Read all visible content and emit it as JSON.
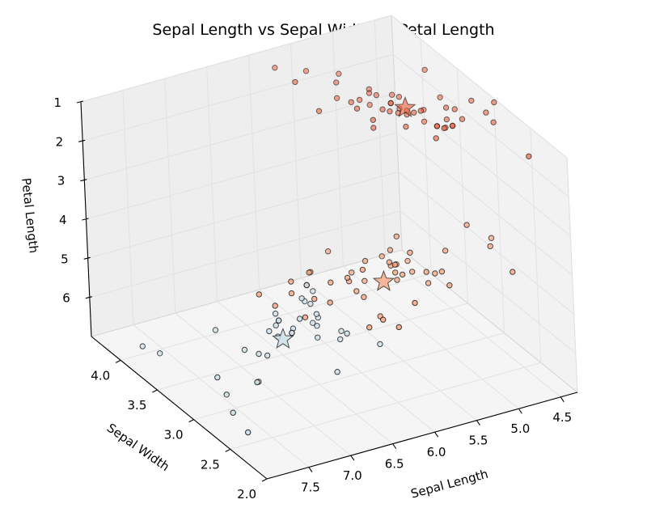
{
  "chart_data": {
    "type": "scatter",
    "title": "Sepal Length  vs  Sepal   Width   vs  Petal   Length",
    "xlabel": "Sepal Length",
    "ylabel": "Sepal Width",
    "zlabel": "Petal Length",
    "xlim": [
      4.3,
      8.0
    ],
    "ylim": [
      2.0,
      4.4
    ],
    "zlim": [
      1.0,
      7.0
    ],
    "z_inverted": true,
    "x_ticks": [
      "4.5",
      "5.0",
      "5.5",
      "6.0",
      "6.5",
      "7.0",
      "7.5"
    ],
    "y_ticks": [
      "2.0",
      "2.5",
      "3.0",
      "3.5",
      "4.0"
    ],
    "z_ticks": [
      "1",
      "2",
      "3",
      "4",
      "5",
      "6"
    ],
    "grid": true,
    "colors": {
      "cluster_setosa": "#e9694a",
      "cluster_versicolor": "#f4a582",
      "cluster_virginica": "#cddfe8",
      "point_edge": "#000000",
      "pane": "#f2f2f2"
    },
    "series": [
      {
        "color_key": "cluster_setosa",
        "marker": "circle",
        "points": [
          [
            5.1,
            3.5,
            1.4
          ],
          [
            4.9,
            3.0,
            1.4
          ],
          [
            4.7,
            3.2,
            1.3
          ],
          [
            4.6,
            3.1,
            1.5
          ],
          [
            5.0,
            3.6,
            1.4
          ],
          [
            5.4,
            3.9,
            1.7
          ],
          [
            4.6,
            3.4,
            1.4
          ],
          [
            5.0,
            3.4,
            1.5
          ],
          [
            4.4,
            2.9,
            1.4
          ],
          [
            4.9,
            3.1,
            1.5
          ],
          [
            5.4,
            3.7,
            1.5
          ],
          [
            4.8,
            3.4,
            1.6
          ],
          [
            4.8,
            3.0,
            1.4
          ],
          [
            4.3,
            3.0,
            1.1
          ],
          [
            5.8,
            4.0,
            1.2
          ],
          [
            5.7,
            4.4,
            1.5
          ],
          [
            5.4,
            3.9,
            1.3
          ],
          [
            5.1,
            3.5,
            1.4
          ],
          [
            5.7,
            3.8,
            1.7
          ],
          [
            5.1,
            3.8,
            1.5
          ],
          [
            5.4,
            3.4,
            1.7
          ],
          [
            5.1,
            3.7,
            1.5
          ],
          [
            4.6,
            3.6,
            1.0
          ],
          [
            5.1,
            3.3,
            1.7
          ],
          [
            4.8,
            3.4,
            1.9
          ],
          [
            5.0,
            3.0,
            1.6
          ],
          [
            5.0,
            3.4,
            1.6
          ],
          [
            5.2,
            3.5,
            1.5
          ],
          [
            5.2,
            3.4,
            1.4
          ],
          [
            4.7,
            3.2,
            1.6
          ],
          [
            4.8,
            3.1,
            1.6
          ],
          [
            5.4,
            3.4,
            1.5
          ],
          [
            5.2,
            4.1,
            1.5
          ],
          [
            5.5,
            4.2,
            1.4
          ],
          [
            4.9,
            3.1,
            1.5
          ],
          [
            5.0,
            3.2,
            1.2
          ],
          [
            5.5,
            3.5,
            1.3
          ],
          [
            4.4,
            3.0,
            1.3
          ],
          [
            5.1,
            3.4,
            1.5
          ],
          [
            5.0,
            3.5,
            1.3
          ],
          [
            4.5,
            2.3,
            1.3
          ],
          [
            4.4,
            3.2,
            1.3
          ],
          [
            5.0,
            3.5,
            1.6
          ],
          [
            5.1,
            3.8,
            1.9
          ],
          [
            4.8,
            3.0,
            1.4
          ],
          [
            5.1,
            3.8,
            1.6
          ],
          [
            4.6,
            3.2,
            1.4
          ],
          [
            5.3,
            3.7,
            1.5
          ],
          [
            5.0,
            3.3,
            1.4
          ]
        ],
        "centroid": [
          5.0,
          3.42,
          1.46
        ]
      },
      {
        "color_key": "cluster_versicolor",
        "marker": "circle",
        "points": [
          [
            7.0,
            3.2,
            4.7
          ],
          [
            6.4,
            3.2,
            4.5
          ],
          [
            6.9,
            3.1,
            4.9
          ],
          [
            5.5,
            2.3,
            4.0
          ],
          [
            6.5,
            2.8,
            4.6
          ],
          [
            5.7,
            2.8,
            4.5
          ],
          [
            6.3,
            3.3,
            4.7
          ],
          [
            4.9,
            2.4,
            3.3
          ],
          [
            6.6,
            2.9,
            4.6
          ],
          [
            5.2,
            2.7,
            3.9
          ],
          [
            5.0,
            2.0,
            3.5
          ],
          [
            5.9,
            3.0,
            4.2
          ],
          [
            6.0,
            2.2,
            4.0
          ],
          [
            6.1,
            2.9,
            4.7
          ],
          [
            5.6,
            2.9,
            3.6
          ],
          [
            6.7,
            3.1,
            4.4
          ],
          [
            5.6,
            3.0,
            4.5
          ],
          [
            5.8,
            2.7,
            4.1
          ],
          [
            6.2,
            2.2,
            4.5
          ],
          [
            5.6,
            2.5,
            3.9
          ],
          [
            5.9,
            3.2,
            4.8
          ],
          [
            6.1,
            2.8,
            4.0
          ],
          [
            6.3,
            2.5,
            4.9
          ],
          [
            6.1,
            2.8,
            4.7
          ],
          [
            6.4,
            2.9,
            4.3
          ],
          [
            6.6,
            3.0,
            4.4
          ],
          [
            6.8,
            2.8,
            4.8
          ],
          [
            6.0,
            2.9,
            4.5
          ],
          [
            5.7,
            2.6,
            3.5
          ],
          [
            5.5,
            2.4,
            3.8
          ],
          [
            5.8,
            2.7,
            3.9
          ],
          [
            6.0,
            2.7,
            5.1
          ],
          [
            5.4,
            3.0,
            4.5
          ],
          [
            6.0,
            3.4,
            4.5
          ],
          [
            6.7,
            3.1,
            4.7
          ],
          [
            6.3,
            2.3,
            4.4
          ],
          [
            5.6,
            3.0,
            4.1
          ],
          [
            5.5,
            2.5,
            4.0
          ],
          [
            5.5,
            2.6,
            4.4
          ],
          [
            6.1,
            3.0,
            4.6
          ],
          [
            5.8,
            2.6,
            4.0
          ],
          [
            5.0,
            2.3,
            3.3
          ],
          [
            5.6,
            2.7,
            4.2
          ],
          [
            5.7,
            3.0,
            4.2
          ],
          [
            5.7,
            2.9,
            4.2
          ],
          [
            6.2,
            2.9,
            4.3
          ],
          [
            5.1,
            2.5,
            3.0
          ],
          [
            5.7,
            2.8,
            4.1
          ]
        ],
        "centroid": [
          5.9,
          2.75,
          4.35
        ]
      },
      {
        "color_key": "cluster_virginica",
        "marker": "circle",
        "points": [
          [
            6.3,
            3.3,
            6.0
          ],
          [
            7.1,
            3.0,
            5.9
          ],
          [
            6.3,
            2.9,
            5.6
          ],
          [
            6.5,
            3.0,
            5.8
          ],
          [
            7.6,
            3.0,
            6.6
          ],
          [
            7.3,
            2.9,
            6.3
          ],
          [
            6.7,
            2.5,
            5.8
          ],
          [
            7.2,
            3.6,
            6.1
          ],
          [
            6.5,
            3.2,
            5.1
          ],
          [
            6.4,
            2.7,
            5.3
          ],
          [
            6.8,
            3.0,
            5.5
          ],
          [
            6.4,
            3.2,
            5.3
          ],
          [
            6.5,
            3.0,
            5.5
          ],
          [
            7.7,
            3.8,
            6.7
          ],
          [
            7.7,
            2.6,
            6.9
          ],
          [
            6.9,
            3.2,
            5.7
          ],
          [
            7.7,
            2.8,
            6.7
          ],
          [
            6.7,
            3.3,
            5.7
          ],
          [
            7.2,
            3.2,
            6.0
          ],
          [
            7.2,
            3.0,
            5.8
          ],
          [
            7.4,
            2.8,
            6.1
          ],
          [
            7.9,
            3.8,
            6.4
          ],
          [
            6.4,
            2.8,
            5.6
          ],
          [
            6.1,
            2.6,
            5.6
          ],
          [
            7.7,
            3.0,
            6.1
          ],
          [
            6.3,
            3.4,
            5.6
          ],
          [
            6.4,
            3.1,
            5.5
          ],
          [
            6.9,
            3.1,
            5.4
          ],
          [
            6.7,
            3.1,
            5.6
          ],
          [
            6.9,
            3.1,
            5.1
          ],
          [
            6.8,
            3.2,
            5.9
          ],
          [
            6.7,
            3.3,
            5.7
          ],
          [
            6.7,
            3.0,
            5.2
          ],
          [
            6.5,
            3.0,
            5.2
          ],
          [
            6.2,
            3.4,
            5.4
          ],
          [
            6.6,
            3.0,
            4.4
          ],
          [
            6.8,
            3.0,
            5.5
          ]
        ],
        "centroid": [
          6.85,
          3.07,
          5.74
        ]
      }
    ]
  }
}
